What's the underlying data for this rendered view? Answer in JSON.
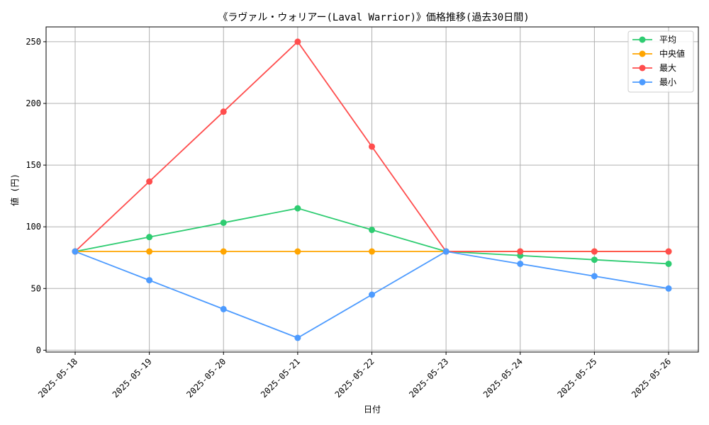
{
  "chart_data": {
    "type": "line",
    "title": "《ラヴァル・ウォリアー(Laval Warrior)》価格推移(過去30日間)",
    "xlabel": "日付",
    "ylabel": "値 (円)",
    "categories": [
      "2025-05-18",
      "2025-05-19",
      "2025-05-20",
      "2025-05-21",
      "2025-05-22",
      "2025-05-23",
      "2025-05-24",
      "2025-05-25",
      "2025-05-26"
    ],
    "ylim": [
      -1.5,
      262
    ],
    "yticks": [
      0,
      50,
      100,
      150,
      200,
      250
    ],
    "grid": true,
    "legend_position": "top-right",
    "series": [
      {
        "name": "平均",
        "color": "#2ecc71",
        "values": [
          80,
          91.7,
          103.3,
          115,
          97.5,
          80,
          76.7,
          73.3,
          70
        ]
      },
      {
        "name": "中央値",
        "color": "#ffa500",
        "values": [
          80,
          80,
          80,
          80,
          80,
          80,
          80,
          80,
          80
        ]
      },
      {
        "name": "最大",
        "color": "#ff4d4d",
        "values": [
          80,
          136.7,
          193.3,
          250,
          165,
          80,
          80,
          80,
          80
        ]
      },
      {
        "name": "最小",
        "color": "#4d9bff",
        "values": [
          80,
          56.7,
          33.3,
          10,
          45,
          80,
          70,
          60,
          50
        ]
      }
    ]
  }
}
